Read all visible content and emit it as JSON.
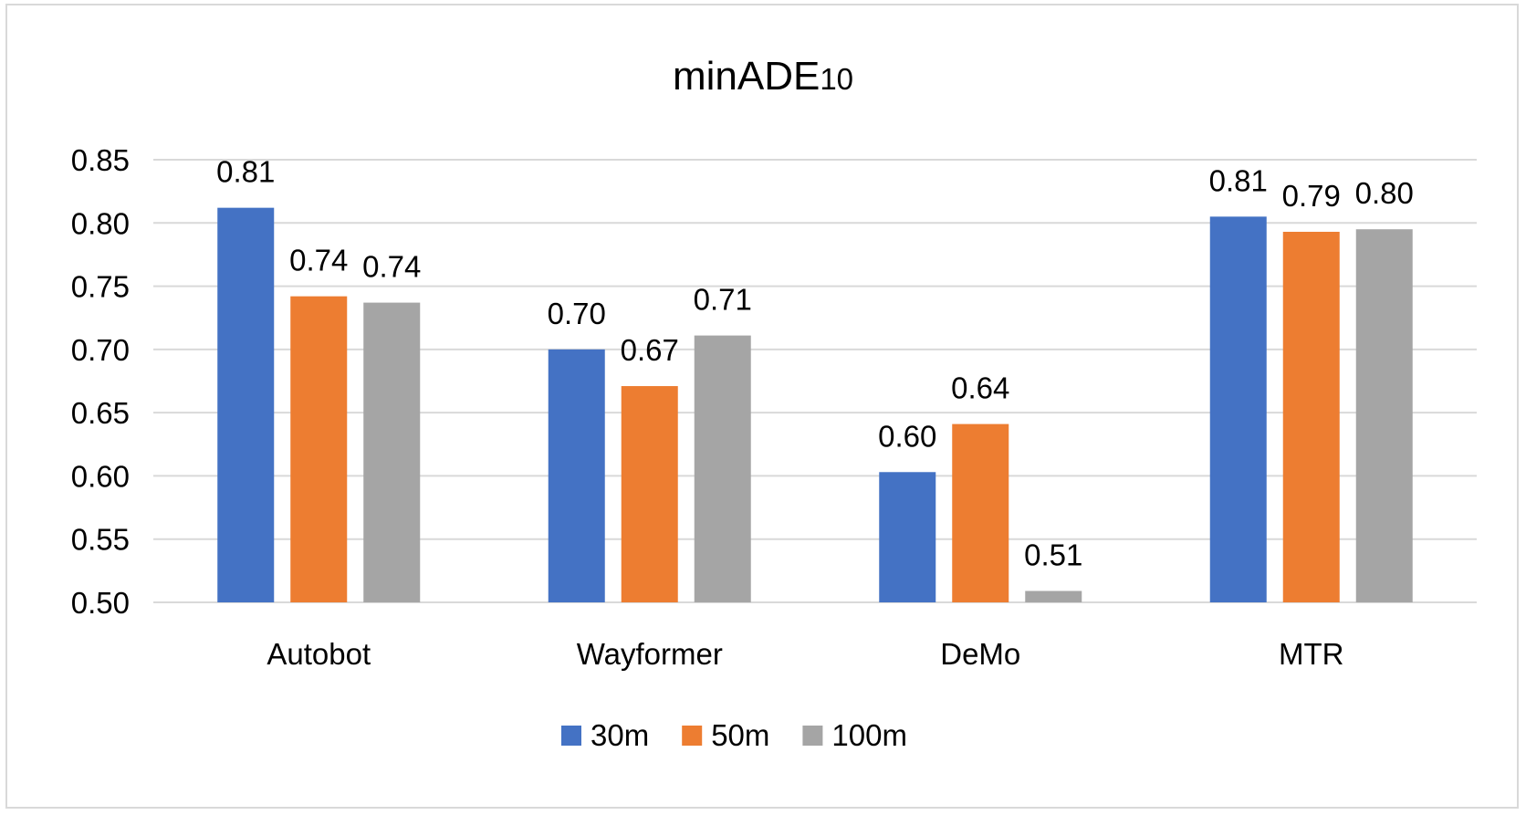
{
  "chart_data": {
    "type": "bar",
    "title_main": "minADE",
    "title_sub": "10",
    "categories": [
      "Autobot",
      "Wayformer",
      "DeMo",
      "MTR"
    ],
    "series": [
      {
        "name": "30m",
        "color": "#4472c4",
        "values": [
          0.812,
          0.7,
          0.603,
          0.805
        ],
        "labels": [
          "0.81",
          "0.70",
          "0.60",
          "0.81"
        ]
      },
      {
        "name": "50m",
        "color": "#ed7d31",
        "values": [
          0.742,
          0.671,
          0.641,
          0.793
        ],
        "labels": [
          "0.74",
          "0.67",
          "0.64",
          "0.79"
        ]
      },
      {
        "name": "100m",
        "color": "#a5a5a5",
        "values": [
          0.737,
          0.711,
          0.509,
          0.795
        ],
        "labels": [
          "0.74",
          "0.71",
          "0.51",
          "0.80"
        ]
      }
    ],
    "ylim": [
      0.5,
      0.85
    ],
    "yticks": [
      "0.50",
      "0.55",
      "0.60",
      "0.65",
      "0.70",
      "0.75",
      "0.80",
      "0.85"
    ],
    "grid": true,
    "legend_position": "bottom"
  }
}
